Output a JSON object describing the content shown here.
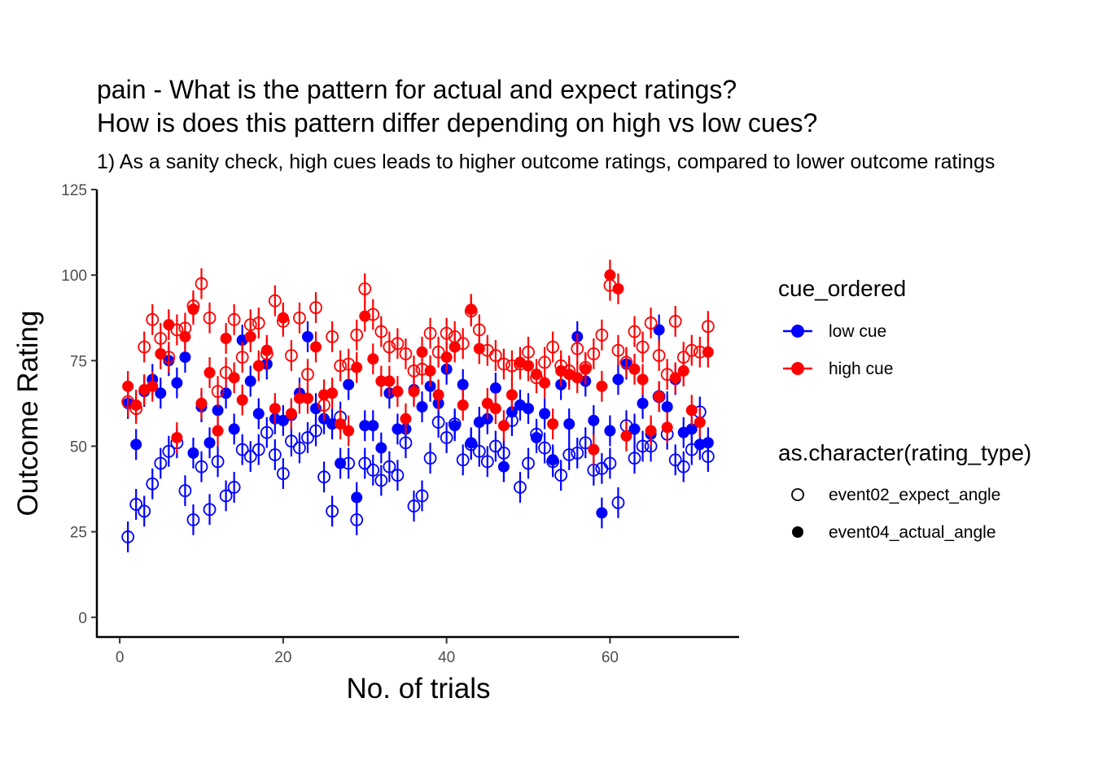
{
  "chart_data": {
    "type": "scatter",
    "title_lines": [
      "pain - What is the pattern for actual and expect ratings?",
      "How is does this pattern differ depending on high vs low cues?"
    ],
    "subtitle": "1) As a sanity check, high cues leads to higher outcome ratings, compared to lower outcome ratings",
    "xlabel": "No. of trials",
    "ylabel": "Outcome Rating",
    "xlim": [
      -2.8,
      75.8
    ],
    "ylim": [
      -6,
      125
    ],
    "x_ticks": [
      0,
      20,
      40,
      60
    ],
    "y_ticks": [
      0,
      25,
      50,
      75,
      100,
      125
    ],
    "grid": false,
    "legend_position": "right",
    "colors": {
      "low cue": "#0000ff",
      "high cue": "#ff0000"
    },
    "legends": [
      {
        "title": "cue_ordered",
        "entries": [
          {
            "label": "low cue",
            "color": "#0000ff"
          },
          {
            "label": "high cue",
            "color": "#ff0000"
          }
        ]
      },
      {
        "title": "as.character(rating_type)",
        "entries": [
          {
            "label": "event02_expect_angle",
            "shape": "open-circle"
          },
          {
            "label": "event04_actual_angle",
            "shape": "filled-circle"
          }
        ]
      }
    ],
    "series": [
      {
        "name": "low cue / event02_expect_angle",
        "cue": "low cue",
        "rating_type": "event02_expect_angle",
        "x": [
          1,
          2,
          3,
          4,
          5,
          6,
          7,
          8,
          9,
          10,
          11,
          12,
          13,
          14,
          15,
          16,
          17,
          18,
          19,
          20,
          21,
          22,
          23,
          24,
          25,
          26,
          27,
          28,
          29,
          30,
          31,
          32,
          33,
          34,
          35,
          36,
          37,
          38,
          39,
          40,
          41,
          42,
          43,
          44,
          45,
          46,
          47,
          48,
          49,
          50,
          51,
          52,
          53,
          54,
          55,
          56,
          57,
          58,
          59,
          60,
          61,
          62,
          63,
          64,
          65,
          66,
          67,
          68,
          69,
          70,
          71,
          72
        ],
        "y": [
          23.5,
          33,
          31,
          39,
          45,
          48.5,
          51,
          37,
          28.5,
          44,
          31.5,
          45.5,
          35.5,
          38,
          49,
          47,
          49,
          54,
          47.5,
          42,
          51.5,
          49.5,
          52.5,
          54.5,
          41,
          31,
          58.5,
          45,
          28.5,
          45,
          43,
          40,
          44,
          41.5,
          51,
          32.5,
          35.5,
          46.5,
          57,
          52.5,
          56.5,
          46,
          50.5,
          48.5,
          45.5,
          50,
          48,
          57.5,
          38,
          45,
          53.5,
          49.5,
          45.5,
          41.5,
          47.5,
          48,
          51,
          43,
          43.5,
          45,
          33.5,
          56,
          46.5,
          50,
          50,
          64.5,
          53.5,
          46,
          44,
          49,
          60,
          47
        ]
      },
      {
        "name": "low cue / event04_actual_angle",
        "cue": "low cue",
        "rating_type": "event04_actual_angle",
        "x": [
          1,
          2,
          3,
          4,
          5,
          6,
          7,
          8,
          9,
          10,
          11,
          12,
          13,
          14,
          15,
          16,
          17,
          18,
          19,
          20,
          21,
          22,
          23,
          24,
          25,
          26,
          27,
          28,
          29,
          30,
          31,
          32,
          33,
          34,
          35,
          36,
          37,
          38,
          39,
          40,
          41,
          42,
          43,
          44,
          45,
          46,
          47,
          48,
          49,
          50,
          51,
          52,
          53,
          54,
          55,
          56,
          57,
          58,
          59,
          60,
          61,
          62,
          63,
          64,
          65,
          66,
          67,
          68,
          69,
          70,
          71,
          72
        ],
        "y": [
          62.5,
          50.5,
          66,
          69.5,
          65.5,
          75,
          68.5,
          76,
          48,
          61.5,
          51,
          60.5,
          65.5,
          55,
          81,
          69,
          59.5,
          74,
          58,
          57.5,
          59,
          65.5,
          82,
          61,
          58,
          56.5,
          45,
          68,
          35,
          56,
          56,
          49.5,
          65.5,
          55,
          55,
          66.5,
          61.5,
          67.5,
          62.5,
          72.5,
          56,
          68,
          51,
          57,
          58,
          67,
          44,
          60,
          62,
          61,
          52.5,
          59.5,
          46,
          68,
          56.5,
          82,
          69,
          57.5,
          30.5,
          54.5,
          69.5,
          74,
          55,
          62.5,
          53.5,
          84,
          61.5,
          69.5,
          54,
          55,
          50.5,
          51
        ]
      },
      {
        "name": "high cue / event02_expect_angle",
        "cue": "high cue",
        "rating_type": "event02_expect_angle",
        "x": [
          1,
          2,
          3,
          4,
          5,
          6,
          7,
          8,
          9,
          10,
          11,
          12,
          13,
          14,
          15,
          16,
          17,
          18,
          19,
          20,
          21,
          22,
          23,
          24,
          25,
          26,
          27,
          28,
          29,
          30,
          31,
          32,
          33,
          34,
          35,
          36,
          37,
          38,
          39,
          40,
          41,
          42,
          43,
          44,
          45,
          46,
          47,
          48,
          49,
          50,
          51,
          52,
          53,
          54,
          55,
          56,
          57,
          58,
          59,
          60,
          61,
          62,
          63,
          64,
          65,
          66,
          67,
          68,
          69,
          70,
          71,
          72
        ],
        "y": [
          63,
          61,
          79,
          87,
          81.5,
          76,
          84,
          84.5,
          91,
          97.5,
          87.5,
          66,
          71.5,
          87,
          76,
          85.5,
          86,
          77,
          92.5,
          86.5,
          76.5,
          87.5,
          71,
          90.5,
          62,
          82,
          73.5,
          74,
          82.5,
          96,
          88.5,
          83.5,
          79,
          80,
          77,
          72,
          72.5,
          83,
          77.5,
          83,
          82,
          80,
          89.5,
          84,
          78,
          76.5,
          74,
          73.5,
          74,
          77.5,
          70,
          74.5,
          79,
          73.5,
          72,
          78.5,
          73,
          77,
          82.5,
          97,
          78,
          74.5,
          83.5,
          79,
          86,
          76.5,
          71,
          86.5,
          76,
          78,
          77.5,
          85
        ]
      },
      {
        "name": "high cue / event04_actual_angle",
        "cue": "high cue",
        "rating_type": "event04_actual_angle",
        "x": [
          1,
          2,
          3,
          4,
          5,
          6,
          7,
          8,
          9,
          10,
          11,
          12,
          13,
          14,
          15,
          16,
          17,
          18,
          19,
          20,
          21,
          22,
          23,
          24,
          25,
          26,
          27,
          28,
          29,
          30,
          31,
          32,
          33,
          34,
          35,
          36,
          37,
          38,
          39,
          40,
          41,
          42,
          43,
          44,
          45,
          46,
          47,
          48,
          49,
          50,
          51,
          52,
          53,
          54,
          55,
          56,
          57,
          58,
          59,
          60,
          61,
          62,
          63,
          64,
          65,
          66,
          67,
          68,
          69,
          70,
          71,
          72
        ],
        "y": [
          67.5,
          62,
          66.5,
          67.5,
          77,
          85.5,
          52.5,
          82,
          90,
          62.5,
          71.5,
          54.5,
          81.5,
          70,
          63.5,
          82,
          73.5,
          78,
          61,
          87.5,
          59.5,
          64,
          64,
          79,
          65,
          65.5,
          56.5,
          54.5,
          73,
          88,
          75.5,
          69,
          69,
          66,
          58,
          66,
          77.5,
          72,
          65,
          76,
          79,
          62,
          90,
          78.5,
          62.5,
          61,
          56,
          65,
          74.5,
          73.5,
          71,
          68.5,
          56.5,
          72,
          71,
          70,
          72.5,
          49,
          67.5,
          100,
          96,
          53,
          72.5,
          69.5,
          54.5,
          64.5,
          55.5,
          70,
          72,
          60.5,
          57,
          77.5
        ]
      }
    ]
  }
}
